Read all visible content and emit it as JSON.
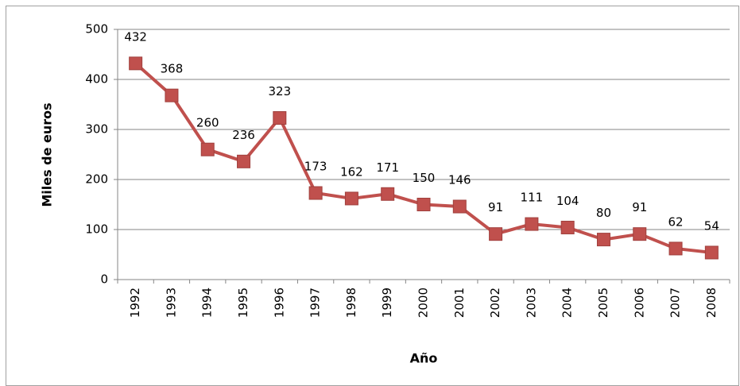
{
  "chart_data": {
    "type": "line",
    "x_label": "Año",
    "y_label": "Miles de euros",
    "categories": [
      "1992",
      "1993",
      "1994",
      "1995",
      "1996",
      "1997",
      "1998",
      "1999",
      "2000",
      "2001",
      "2002",
      "2003",
      "2004",
      "2005",
      "2006",
      "2007",
      "2008"
    ],
    "series": [
      {
        "color": "#c0504d",
        "values": [
          432,
          368,
          260,
          236,
          323,
          173,
          162,
          171,
          150,
          146,
          91,
          111,
          104,
          80,
          91,
          62,
          54
        ]
      }
    ],
    "ylim": [
      0,
      500
    ],
    "yticks": [
      0,
      100,
      200,
      300,
      400,
      500
    ],
    "grid": true
  }
}
